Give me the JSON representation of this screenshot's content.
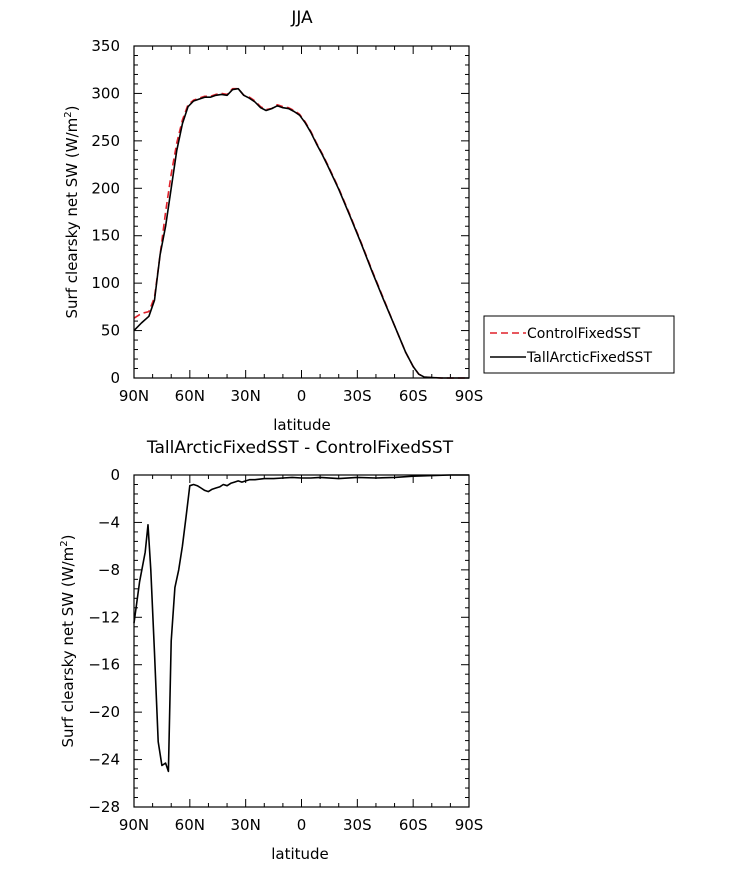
{
  "chart_data": [
    {
      "type": "line",
      "title": "JJA",
      "xlabel": "latitude",
      "ylabel_main": "Surf clearsky net SW (W/m",
      "ylabel_sup": "2",
      "ylabel_close": ")",
      "xlim": [
        90,
        -90
      ],
      "ylim": [
        0,
        350
      ],
      "x_ticks": [
        90,
        60,
        30,
        0,
        -30,
        -60,
        -90
      ],
      "x_tick_labels": [
        "90N",
        "60N",
        "30N",
        "0",
        "30S",
        "60S",
        "90S"
      ],
      "y_ticks": [
        0,
        50,
        100,
        150,
        200,
        250,
        300,
        350
      ],
      "y_tick_labels": [
        "0",
        "50",
        "100",
        "150",
        "200",
        "250",
        "300",
        "350"
      ],
      "legend_position": "right",
      "series": [
        {
          "name": "ControlFixedSST",
          "color": "#e0202a",
          "dash": "dashed",
          "x": [
            90,
            86,
            82,
            79,
            76,
            73,
            70,
            67,
            64,
            61,
            58,
            55,
            52,
            49,
            46,
            43,
            40,
            37,
            34,
            31,
            28,
            25,
            22,
            19,
            16,
            13,
            10,
            7,
            4,
            1,
            -2,
            -5,
            -8,
            -11,
            -14,
            -20,
            -26,
            -32,
            -38,
            -44,
            -50,
            -56,
            -60,
            -63,
            -66,
            -70,
            -75,
            -80,
            -85,
            -90
          ],
          "y": [
            63,
            68,
            70,
            85,
            130,
            175,
            215,
            248,
            272,
            288,
            293,
            295,
            297,
            297,
            299,
            300,
            299,
            305,
            305,
            298,
            296,
            292,
            286,
            283,
            284,
            288,
            286,
            285,
            282,
            278,
            270,
            260,
            248,
            237,
            225,
            200,
            172,
            143,
            113,
            84,
            55,
            27,
            12,
            4,
            1,
            0.5,
            0,
            0,
            0,
            0
          ]
        },
        {
          "name": "TallArcticFixedSST",
          "color": "#000000",
          "dash": "solid",
          "x": [
            90,
            86,
            82,
            79,
            76,
            73,
            70,
            67,
            64,
            61,
            58,
            55,
            52,
            49,
            46,
            43,
            40,
            37,
            34,
            31,
            28,
            25,
            22,
            19,
            16,
            13,
            10,
            7,
            4,
            1,
            -2,
            -5,
            -8,
            -11,
            -14,
            -20,
            -26,
            -32,
            -38,
            -44,
            -50,
            -56,
            -60,
            -63,
            -66,
            -70,
            -75,
            -80,
            -85,
            -90
          ],
          "y": [
            50,
            58,
            65,
            82,
            130,
            160,
            200,
            240,
            268,
            286,
            292,
            294,
            296,
            296,
            298,
            299,
            298,
            304,
            305,
            298,
            295,
            291,
            285,
            282,
            284,
            287,
            285,
            284,
            281,
            277,
            269,
            259,
            247,
            236,
            224,
            199,
            171,
            142,
            112,
            83,
            55,
            27,
            12,
            4,
            1,
            0.5,
            0,
            0,
            0,
            0
          ]
        }
      ]
    },
    {
      "type": "line",
      "title": "TallArcticFixedSST - ControlFixedSST",
      "xlabel": "latitude",
      "ylabel_main": "Surf clearsky net SW (W/m",
      "ylabel_sup": "2",
      "ylabel_close": ")",
      "xlim": [
        90,
        -90
      ],
      "ylim": [
        -28,
        0
      ],
      "x_ticks": [
        90,
        60,
        30,
        0,
        -30,
        -60,
        -90
      ],
      "x_tick_labels": [
        "90N",
        "60N",
        "30N",
        "0",
        "30S",
        "60S",
        "90S"
      ],
      "y_ticks": [
        0,
        -4,
        -8,
        -12,
        -16,
        -20,
        -24,
        -28
      ],
      "y_tick_labels": [
        "0",
        "−4",
        "−8",
        "−12",
        "−16",
        "−20",
        "−24",
        "−28"
      ],
      "series": [
        {
          "color": "#000000",
          "dash": "solid",
          "x": [
            90,
            87,
            84,
            82.5,
            81,
            79,
            77,
            75,
            73,
            71.5,
            70,
            68,
            66,
            64,
            62,
            60,
            58,
            56,
            54,
            52,
            50,
            48,
            46,
            44,
            42,
            40,
            38,
            36,
            34,
            32,
            30,
            28,
            25,
            20,
            15,
            10,
            5,
            0,
            -5,
            -10,
            -20,
            -30,
            -40,
            -50,
            -60,
            -70,
            -80,
            -90
          ],
          "y": [
            -12.5,
            -9,
            -6.5,
            -4.2,
            -8,
            -15,
            -22.5,
            -24.5,
            -24.3,
            -25,
            -14,
            -9.5,
            -8,
            -6,
            -3.5,
            -0.9,
            -0.8,
            -0.9,
            -1.1,
            -1.3,
            -1.4,
            -1.2,
            -1.1,
            -1.0,
            -0.8,
            -0.9,
            -0.7,
            -0.6,
            -0.5,
            -0.6,
            -0.5,
            -0.4,
            -0.4,
            -0.3,
            -0.3,
            -0.25,
            -0.2,
            -0.25,
            -0.25,
            -0.2,
            -0.3,
            -0.2,
            -0.25,
            -0.2,
            -0.1,
            -0.05,
            0,
            0
          ]
        }
      ]
    }
  ]
}
